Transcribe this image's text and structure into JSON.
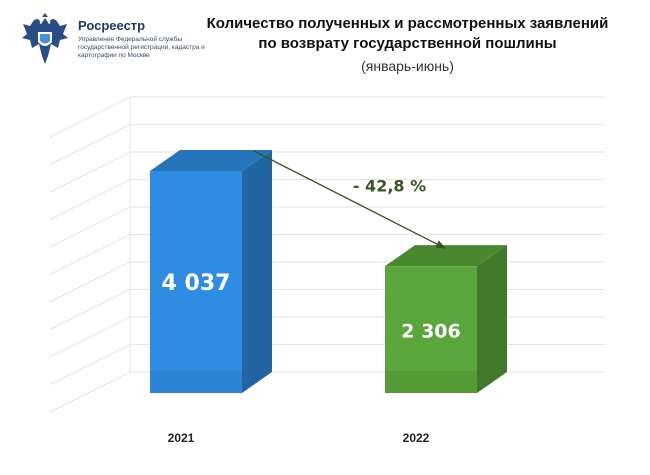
{
  "header": {
    "logo_name": "Росреестр",
    "logo_subtitle": "Управление Федеральной службы государственной регистрации, кадастра и картографии по Москве",
    "logo_icon": "double-headed-eagle-emblem-icon",
    "title_line1": "Количество полученных и рассмотренных заявлений",
    "title_line2": "по возврату государственной пошлины",
    "subtitle": "(январь-июнь)"
  },
  "chart_data": {
    "type": "bar",
    "style": "3d",
    "categories": [
      "2021",
      "2022"
    ],
    "values": [
      4037,
      2306
    ],
    "value_labels": [
      "4 037",
      "2 306"
    ],
    "bar_colors": [
      "#2e8de3",
      "#5aa63a"
    ],
    "ylim": [
      0,
      5000
    ],
    "grid": true,
    "annotation": {
      "text": "- 42,8 %",
      "from": "2021",
      "to": "2022",
      "color": "#375623"
    }
  }
}
